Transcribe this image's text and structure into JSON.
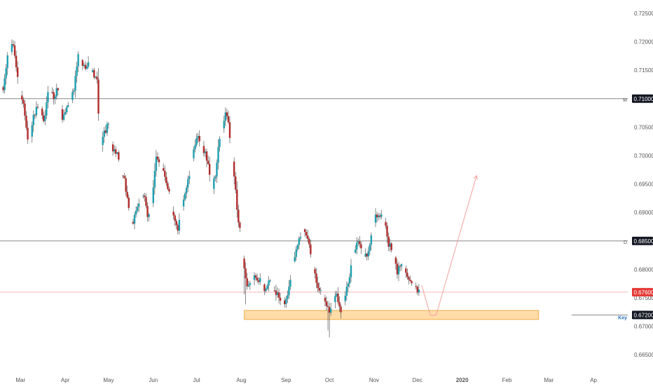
{
  "colors": {
    "background": "#ffffff",
    "bull": "#26a69a",
    "bull_body": "#1e9fb0",
    "bear": "#b22b2b",
    "wick": "#555555",
    "axis_text": "#555555",
    "hline": "#888888",
    "price_line": "#f2a0a0",
    "price_tag": "#e53935",
    "zone_fill": "#ffd699",
    "zone_stroke": "#f0a030",
    "projection": "#f5a0a0",
    "tag_dark": "#131722",
    "key_text": "#1e6fbf"
  },
  "chart_data": {
    "type": "candlestick",
    "title": "",
    "xlabel": "",
    "ylabel": "",
    "ylim": [
      0.6633,
      0.7268
    ],
    "grid": false,
    "x_ticks": [
      {
        "label": "Mar",
        "day": 13
      },
      {
        "label": "Apr",
        "day": 44
      },
      {
        "label": "May",
        "day": 74
      },
      {
        "label": "Jun",
        "day": 105
      },
      {
        "label": "Jul",
        "day": 135
      },
      {
        "label": "Aug",
        "day": 166
      },
      {
        "label": "Sep",
        "day": 197
      },
      {
        "label": "Oct",
        "day": 227
      },
      {
        "label": "Nov",
        "day": 258
      },
      {
        "label": "Dec",
        "day": 288
      },
      {
        "label": "2020",
        "day": 319
      },
      {
        "label": "Feb",
        "day": 350
      },
      {
        "label": "Mar",
        "day": 379
      },
      {
        "label": "Ap",
        "day": 410
      }
    ],
    "y_ticks": [
      "0.72500",
      "0.72000",
      "0.71500",
      "0.71000",
      "0.70500",
      "0.70000",
      "0.69500",
      "0.69000",
      "0.68500",
      "0.68000",
      "0.67500",
      "0.67000",
      "0.66500"
    ],
    "horizontal_levels": [
      {
        "price": 0.71,
        "label": "0.71000",
        "marker": "M"
      },
      {
        "price": 0.685,
        "label": "0.68500",
        "marker": "D"
      },
      {
        "price": 0.672,
        "label": "0.67200",
        "marker": "Key"
      }
    ],
    "current_price": {
      "price": 0.676,
      "label": "0.67600"
    },
    "zone": {
      "price_low": 0.6712,
      "price_high": 0.6728,
      "day_start": 168,
      "day_end": 372
    },
    "projection_path": [
      {
        "day": 291,
        "price": 0.6772
      },
      {
        "day": 297,
        "price": 0.6719
      },
      {
        "day": 301,
        "price": 0.672
      },
      {
        "day": 329,
        "price": 0.6965
      }
    ],
    "anchors": [
      {
        "day": 1,
        "price": 0.7115
      },
      {
        "day": 4,
        "price": 0.7175
      },
      {
        "day": 8,
        "price": 0.7195
      },
      {
        "day": 12,
        "price": 0.712
      },
      {
        "day": 15,
        "price": 0.709
      },
      {
        "day": 19,
        "price": 0.7015
      },
      {
        "day": 22,
        "price": 0.707
      },
      {
        "day": 26,
        "price": 0.709
      },
      {
        "day": 29,
        "price": 0.7055
      },
      {
        "day": 33,
        "price": 0.7125
      },
      {
        "day": 36,
        "price": 0.71
      },
      {
        "day": 39,
        "price": 0.712
      },
      {
        "day": 42,
        "price": 0.7065
      },
      {
        "day": 46,
        "price": 0.709
      },
      {
        "day": 50,
        "price": 0.7115
      },
      {
        "day": 53,
        "price": 0.7175
      },
      {
        "day": 57,
        "price": 0.7155
      },
      {
        "day": 60,
        "price": 0.7165
      },
      {
        "day": 63,
        "price": 0.7145
      },
      {
        "day": 66,
        "price": 0.713
      },
      {
        "day": 68,
        "price": 0.7015
      },
      {
        "day": 71,
        "price": 0.704
      },
      {
        "day": 74,
        "price": 0.7055
      },
      {
        "day": 77,
        "price": 0.701
      },
      {
        "day": 80,
        "price": 0.7005
      },
      {
        "day": 82,
        "price": 0.697
      },
      {
        "day": 85,
        "price": 0.6955
      },
      {
        "day": 88,
        "price": 0.691
      },
      {
        "day": 91,
        "price": 0.6875
      },
      {
        "day": 93,
        "price": 0.6905
      },
      {
        "day": 96,
        "price": 0.6925
      },
      {
        "day": 99,
        "price": 0.6925
      },
      {
        "day": 101,
        "price": 0.6895
      },
      {
        "day": 104,
        "price": 0.6915
      },
      {
        "day": 107,
        "price": 0.6995
      },
      {
        "day": 110,
        "price": 0.699
      },
      {
        "day": 113,
        "price": 0.6965
      },
      {
        "day": 116,
        "price": 0.6935
      },
      {
        "day": 119,
        "price": 0.689
      },
      {
        "day": 122,
        "price": 0.6865
      },
      {
        "day": 124,
        "price": 0.6905
      },
      {
        "day": 127,
        "price": 0.6935
      },
      {
        "day": 130,
        "price": 0.6965
      },
      {
        "day": 133,
        "price": 0.7015
      },
      {
        "day": 136,
        "price": 0.703
      },
      {
        "day": 139,
        "price": 0.7015
      },
      {
        "day": 141,
        "price": 0.7005
      },
      {
        "day": 144,
        "price": 0.697
      },
      {
        "day": 146,
        "price": 0.6945
      },
      {
        "day": 148,
        "price": 0.6965
      },
      {
        "day": 150,
        "price": 0.7015
      },
      {
        "day": 153,
        "price": 0.7045
      },
      {
        "day": 155,
        "price": 0.7075
      },
      {
        "day": 157,
        "price": 0.7055
      },
      {
        "day": 159,
        "price": 0.701
      },
      {
        "day": 161,
        "price": 0.6965
      },
      {
        "day": 163,
        "price": 0.6905
      },
      {
        "day": 165,
        "price": 0.687
      },
      {
        "day": 167,
        "price": 0.682
      },
      {
        "day": 170,
        "price": 0.6765
      },
      {
        "day": 173,
        "price": 0.6775
      },
      {
        "day": 176,
        "price": 0.679
      },
      {
        "day": 179,
        "price": 0.678
      },
      {
        "day": 182,
        "price": 0.6765
      },
      {
        "day": 185,
        "price": 0.678
      },
      {
        "day": 188,
        "price": 0.6765
      },
      {
        "day": 191,
        "price": 0.6755
      },
      {
        "day": 194,
        "price": 0.674
      },
      {
        "day": 197,
        "price": 0.6745
      },
      {
        "day": 200,
        "price": 0.6785
      },
      {
        "day": 203,
        "price": 0.6825
      },
      {
        "day": 206,
        "price": 0.686
      },
      {
        "day": 209,
        "price": 0.6865
      },
      {
        "day": 212,
        "price": 0.6855
      },
      {
        "day": 215,
        "price": 0.6815
      },
      {
        "day": 218,
        "price": 0.678
      },
      {
        "day": 221,
        "price": 0.676
      },
      {
        "day": 224,
        "price": 0.6745
      },
      {
        "day": 227,
        "price": 0.6725
      },
      {
        "day": 229,
        "price": 0.6745
      },
      {
        "day": 232,
        "price": 0.6755
      },
      {
        "day": 235,
        "price": 0.673
      },
      {
        "day": 238,
        "price": 0.6755
      },
      {
        "day": 241,
        "price": 0.6785
      },
      {
        "day": 244,
        "price": 0.6835
      },
      {
        "day": 247,
        "price": 0.685
      },
      {
        "day": 250,
        "price": 0.6825
      },
      {
        "day": 253,
        "price": 0.6825
      },
      {
        "day": 256,
        "price": 0.6855
      },
      {
        "day": 259,
        "price": 0.6895
      },
      {
        "day": 262,
        "price": 0.6895
      },
      {
        "day": 265,
        "price": 0.6885
      },
      {
        "day": 268,
        "price": 0.6845
      },
      {
        "day": 271,
        "price": 0.683
      },
      {
        "day": 274,
        "price": 0.6795
      },
      {
        "day": 277,
        "price": 0.6815
      },
      {
        "day": 280,
        "price": 0.6795
      },
      {
        "day": 283,
        "price": 0.6775
      },
      {
        "day": 286,
        "price": 0.6775
      },
      {
        "day": 289,
        "price": 0.676
      }
    ]
  }
}
